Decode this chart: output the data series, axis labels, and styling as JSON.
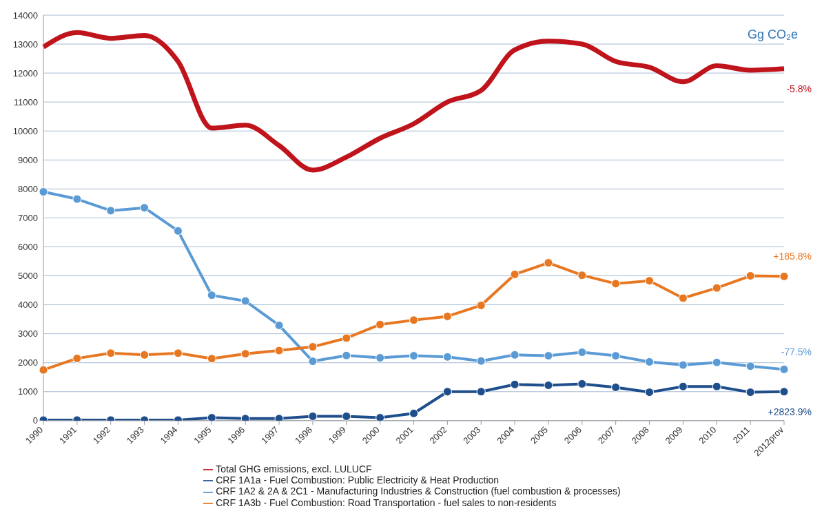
{
  "chart_data": {
    "type": "line",
    "categories": [
      "1990",
      "1991",
      "1992",
      "1993",
      "1994",
      "1995",
      "1996",
      "1997",
      "1998",
      "1999",
      "2000",
      "2001",
      "2002",
      "2003",
      "2004",
      "2005",
      "2006",
      "2007",
      "2008",
      "2009",
      "2010",
      "2011",
      "2012prov"
    ],
    "series": [
      {
        "name": "Total GHG emissions, excl. LULUCF",
        "color": "#c0141c",
        "marker": "none",
        "values": [
          12900,
          13400,
          13200,
          13300,
          12400,
          10100,
          10200,
          9500,
          8650,
          9100,
          9750,
          10250,
          11000,
          11400,
          12800,
          13100,
          13000,
          12400,
          12200,
          11700,
          12250,
          12100,
          12150
        ]
      },
      {
        "name": "CRF 1A1a - Fuel Combustion: Public Electricity & Heat Production",
        "color": "#1f4e8c",
        "values": [
          20,
          20,
          20,
          20,
          20,
          100,
          70,
          70,
          150,
          150,
          100,
          250,
          1000,
          1000,
          1250,
          1220,
          1270,
          1150,
          980,
          1180,
          1180,
          980,
          1000
        ]
      },
      {
        "name": "CRF 1A2 & 2A & 2C1 - Manufacturing Industries & Construction (fuel combustion & processes)",
        "color": "#5b9bd5",
        "values": [
          7900,
          7650,
          7250,
          7350,
          6550,
          4330,
          4130,
          3290,
          2050,
          2250,
          2170,
          2240,
          2200,
          2060,
          2270,
          2240,
          2360,
          2240,
          2030,
          1920,
          2010,
          1880,
          1770
        ]
      },
      {
        "name": "CRF 1A3b - Fuel Combustion: Road Transportation - fuel sales to non-residents",
        "color": "#e87722",
        "values": [
          1750,
          2150,
          2330,
          2270,
          2330,
          2140,
          2310,
          2420,
          2550,
          2850,
          3320,
          3470,
          3600,
          3980,
          5050,
          5450,
          5020,
          4730,
          4830,
          4230,
          4580,
          5000,
          4980
        ]
      }
    ],
    "annotations": [
      "Gg CO₂e",
      "-5.8%",
      "+2823.9%",
      "-77.5%",
      "+185.8%"
    ],
    "ylim": [
      0,
      14000
    ],
    "yticks": [
      0,
      1000,
      2000,
      3000,
      4000,
      5000,
      6000,
      7000,
      8000,
      9000,
      10000,
      11000,
      12000,
      13000,
      14000
    ],
    "grid": "y",
    "legend": "bottom",
    "marker": "circle",
    "line_style": "solid"
  }
}
